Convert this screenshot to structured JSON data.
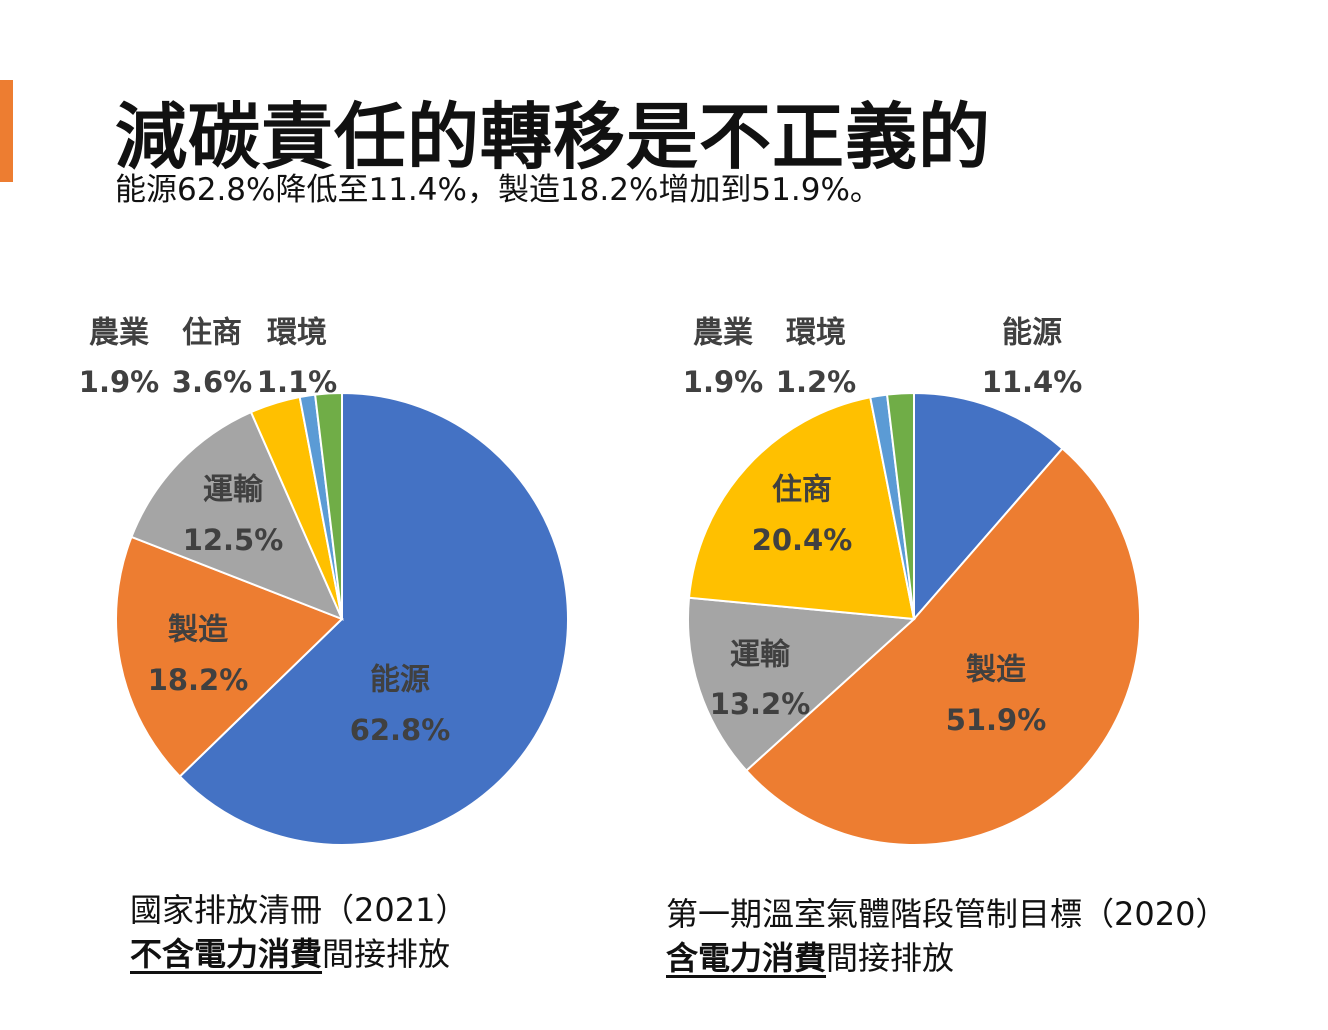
{
  "title": "減碳責任的轉移是不正義的",
  "subtitle": "能源62.8%降低至11.4%，製造18.2%增加到51.9%。",
  "accent_color": "#ED7D31",
  "captions": [
    {
      "line1": "國家排放清冊（2021）",
      "emph": "不含電力消費",
      "rest": "間接排放"
    },
    {
      "line1": "第一期溫室氣體階段管制目標（2020）",
      "emph": "含電力消費",
      "rest": "間接排放"
    }
  ],
  "chart_data": [
    {
      "type": "pie",
      "title": "",
      "slices": [
        {
          "name": "能源",
          "value": 62.8,
          "label": "62.8%",
          "color": "#4472C4"
        },
        {
          "name": "製造",
          "value": 18.2,
          "label": "18.2%",
          "color": "#ED7D31"
        },
        {
          "name": "運輸",
          "value": 12.5,
          "label": "12.5%",
          "color": "#A5A5A5"
        },
        {
          "name": "住商",
          "value": 3.6,
          "label": "3.6%",
          "color": "#FFC000"
        },
        {
          "name": "環境",
          "value": 1.1,
          "label": "1.1%",
          "color": "#5B9BD5"
        },
        {
          "name": "農業",
          "value": 1.9,
          "label": "1.9%",
          "color": "#70AD47"
        }
      ]
    },
    {
      "type": "pie",
      "title": "",
      "slices": [
        {
          "name": "能源",
          "value": 11.4,
          "label": "11.4%",
          "color": "#4472C4"
        },
        {
          "name": "製造",
          "value": 51.9,
          "label": "51.9%",
          "color": "#ED7D31"
        },
        {
          "name": "運輸",
          "value": 13.2,
          "label": "13.2%",
          "color": "#A5A5A5"
        },
        {
          "name": "住商",
          "value": 20.4,
          "label": "20.4%",
          "color": "#FFC000"
        },
        {
          "name": "環境",
          "value": 1.2,
          "label": "1.2%",
          "color": "#5B9BD5"
        },
        {
          "name": "農業",
          "value": 1.9,
          "label": "1.9%",
          "color": "#70AD47"
        }
      ]
    }
  ]
}
